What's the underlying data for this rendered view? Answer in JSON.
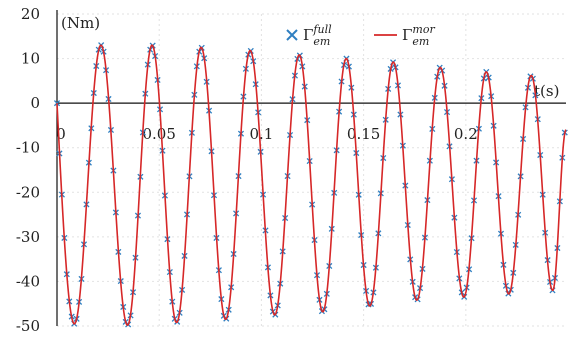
{
  "chart_data": {
    "type": "line",
    "title": "",
    "xlabel": "t(s)",
    "ylabel": "(Nm)",
    "xlim": [
      0,
      0.249
    ],
    "ylim": [
      -50,
      20
    ],
    "x_ticks": [
      0,
      0.05,
      0.1,
      0.15,
      0.2
    ],
    "x_tick_labels": [
      "0",
      "0.05",
      "0.1",
      "0.15",
      "0.2"
    ],
    "y_ticks": [
      20,
      10,
      0,
      -10,
      -20,
      -30,
      -40,
      -50
    ],
    "y_tick_labels": [
      "20",
      "10",
      "0",
      "-10",
      "-20",
      "-30",
      "-40",
      "-50"
    ],
    "grid": true,
    "legend_position": "top-right",
    "series": [
      {
        "name": "Γ_em^full",
        "legend_base": "Γ",
        "legend_sup": "full",
        "legend_sub": "em",
        "style": "markers",
        "marker": "x",
        "color": "#2f7fc1"
      },
      {
        "name": "Γ_em^mor",
        "legend_base": "Γ",
        "legend_sup": "mor",
        "legend_sub": "em",
        "style": "line",
        "color": "#d62728"
      }
    ],
    "waveform": {
      "description_values": "oscillation peaks and troughs read from the axes",
      "start": {
        "t": 0.0,
        "value": 0
      },
      "end": {
        "t": 0.249,
        "value": -6
      },
      "extrema": [
        {
          "t": 0.0085,
          "value": -49.5
        },
        {
          "t": 0.0215,
          "value": 13
        },
        {
          "t": 0.0345,
          "value": -49.8
        },
        {
          "t": 0.0465,
          "value": 13
        },
        {
          "t": 0.0585,
          "value": -49.2
        },
        {
          "t": 0.0705,
          "value": 12.5
        },
        {
          "t": 0.0825,
          "value": -48.5
        },
        {
          "t": 0.0945,
          "value": 11.8
        },
        {
          "t": 0.1065,
          "value": -47.5
        },
        {
          "t": 0.1185,
          "value": 10.8
        },
        {
          "t": 0.13,
          "value": -46.8
        },
        {
          "t": 0.1415,
          "value": 10
        },
        {
          "t": 0.153,
          "value": -45.5
        },
        {
          "t": 0.1645,
          "value": 9.2
        },
        {
          "t": 0.176,
          "value": -44.2
        },
        {
          "t": 0.1875,
          "value": 8
        },
        {
          "t": 0.199,
          "value": -43.5
        },
        {
          "t": 0.21,
          "value": 7
        },
        {
          "t": 0.221,
          "value": -42.8
        },
        {
          "t": 0.232,
          "value": 6.2
        },
        {
          "t": 0.2425,
          "value": -42
        }
      ]
    }
  }
}
